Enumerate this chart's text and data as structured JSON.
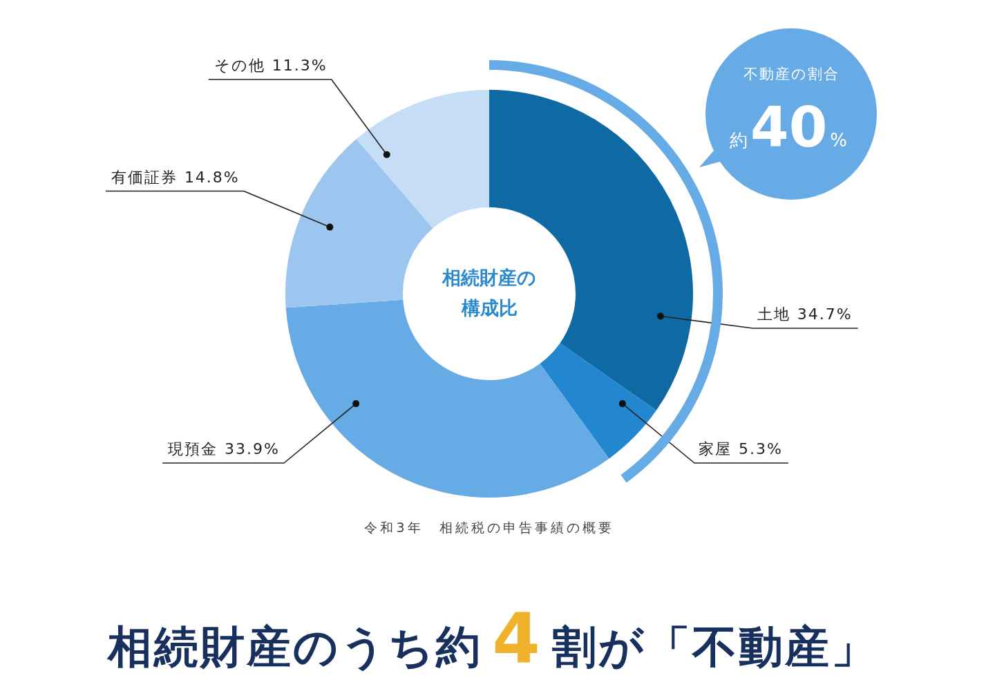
{
  "chart_data": {
    "type": "donut",
    "title": "相続財産のうち約4割が「不動産」",
    "categories": [
      "土地",
      "家屋",
      "現預金",
      "有価証券",
      "その他"
    ],
    "values": [
      34.7,
      5.3,
      33.9,
      14.8,
      11.3
    ],
    "colors": [
      "#0f6aa4",
      "#2287cf",
      "#67abe6",
      "#9cc5ef",
      "#c6ddf6"
    ],
    "value_labels": [
      "34.7%",
      "5.3%",
      "33.9%",
      "14.8%",
      "11.3%"
    ],
    "annotations": [
      "相続財産の構成比",
      "不動産の割合",
      "約40%",
      "令和3年　相続税の申告事績の概要"
    ]
  }
}
